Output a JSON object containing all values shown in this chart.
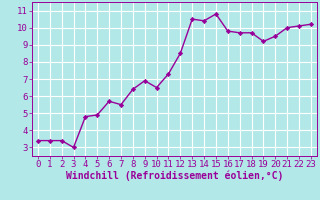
{
  "x": [
    0,
    1,
    2,
    3,
    4,
    5,
    6,
    7,
    8,
    9,
    10,
    11,
    12,
    13,
    14,
    15,
    16,
    17,
    18,
    19,
    20,
    21,
    22,
    23
  ],
  "y": [
    3.4,
    3.4,
    3.4,
    3.0,
    4.8,
    4.9,
    5.7,
    5.5,
    6.4,
    6.9,
    6.5,
    7.3,
    8.5,
    10.5,
    10.4,
    10.8,
    9.8,
    9.7,
    9.7,
    9.2,
    9.5,
    10.0,
    10.1,
    10.2
  ],
  "line_color": "#990099",
  "marker": "D",
  "marker_size": 2.2,
  "bg_color": "#b3e8e8",
  "grid_color": "#ffffff",
  "xlabel": "Windchill (Refroidissement éolien,°C)",
  "ylim": [
    2.5,
    11.5
  ],
  "xlim": [
    -0.5,
    23.5
  ],
  "yticks": [
    3,
    4,
    5,
    6,
    7,
    8,
    9,
    10,
    11
  ],
  "xticks": [
    0,
    1,
    2,
    3,
    4,
    5,
    6,
    7,
    8,
    9,
    10,
    11,
    12,
    13,
    14,
    15,
    16,
    17,
    18,
    19,
    20,
    21,
    22,
    23
  ],
  "tick_color": "#990099",
  "label_color": "#990099",
  "font_size": 6.5,
  "xlabel_fontsize": 7.0,
  "linewidth": 1.0
}
